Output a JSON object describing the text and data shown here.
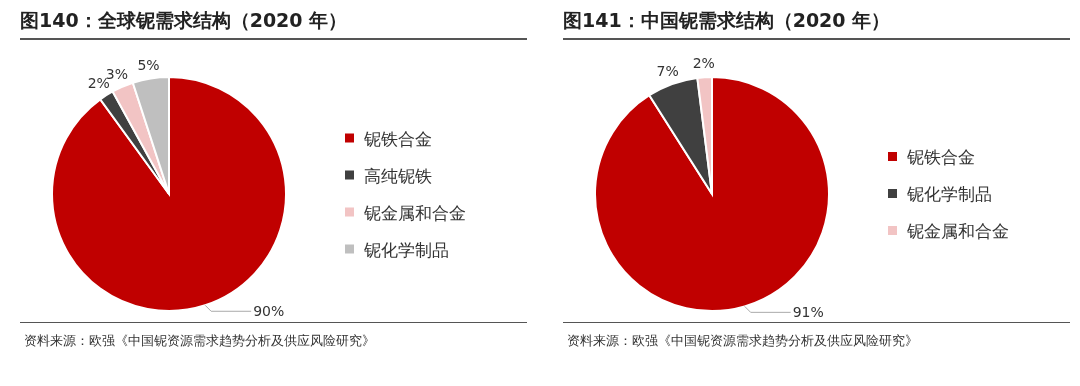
{
  "chart_data": [
    {
      "type": "pie",
      "title": "图140：全球铌需求结构（2020 年）",
      "categories": [
        "铌铁合金",
        "高纯铌铁",
        "铌金属和合金",
        "铌化学制品"
      ],
      "values": [
        90,
        2,
        3,
        5
      ],
      "colors": [
        "#c00000",
        "#404040",
        "#f2c4c4",
        "#bfbfbf"
      ],
      "value_labels": [
        "90%",
        "2%",
        "3%",
        "5%"
      ],
      "legend": "right",
      "annotations": [
        "资料来源：欧强《中国铌资源需求趋势分析及供应风险研究》"
      ]
    },
    {
      "type": "pie",
      "title": "图141：中国铌需求结构（2020 年）",
      "categories": [
        "铌铁合金",
        "铌化学制品",
        "铌金属和合金"
      ],
      "values": [
        91,
        7,
        2
      ],
      "colors": [
        "#c00000",
        "#404040",
        "#f2c4c4"
      ],
      "value_labels": [
        "91%",
        "7%",
        "2%"
      ],
      "legend": "right",
      "annotations": [
        "资料来源：欧强《中国铌资源需求趋势分析及供应风险研究》"
      ]
    }
  ]
}
